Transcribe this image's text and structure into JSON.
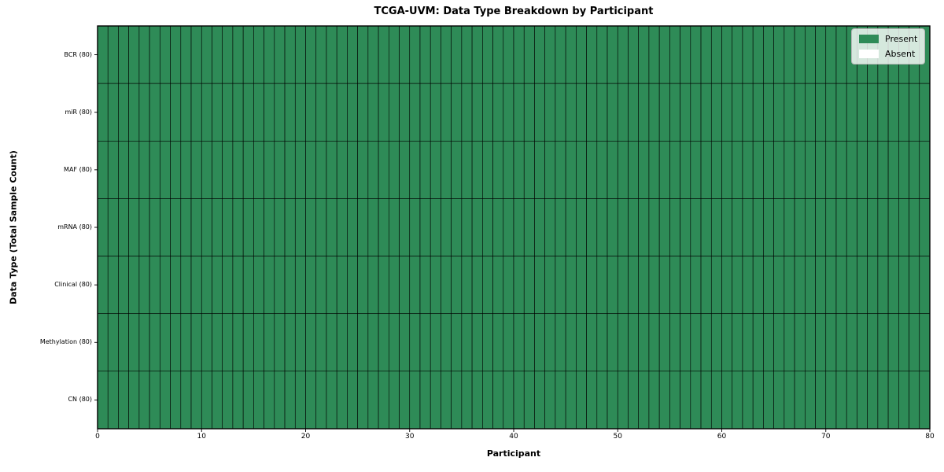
{
  "chart_data": {
    "type": "heatmap",
    "title": "TCGA-UVM: Data Type Breakdown by Participant",
    "xlabel": "Participant",
    "ylabel": "Data Type (Total Sample Count)",
    "xlim": [
      0,
      80
    ],
    "x_ticks": [
      0,
      10,
      20,
      30,
      40,
      50,
      60,
      70,
      80
    ],
    "n_participants": 80,
    "rows": [
      {
        "label": "BCR (80)",
        "present": 80
      },
      {
        "label": "miR (80)",
        "present": 80
      },
      {
        "label": "MAF (80)",
        "present": 80
      },
      {
        "label": "mRNA (80)",
        "present": 80
      },
      {
        "label": "Clinical (80)",
        "present": 80
      },
      {
        "label": "Methylation (80)",
        "present": 80
      },
      {
        "label": "CN (80)",
        "present": 80
      }
    ],
    "legend": {
      "position": "upper right",
      "entries": [
        {
          "label": "Present",
          "color": "#2e8b57"
        },
        {
          "label": "Absent",
          "color": "#ffffff"
        }
      ]
    },
    "colors": {
      "present": "#2e8b57",
      "absent": "#ffffff",
      "cell_border": "#000000",
      "axis": "#000000"
    }
  }
}
